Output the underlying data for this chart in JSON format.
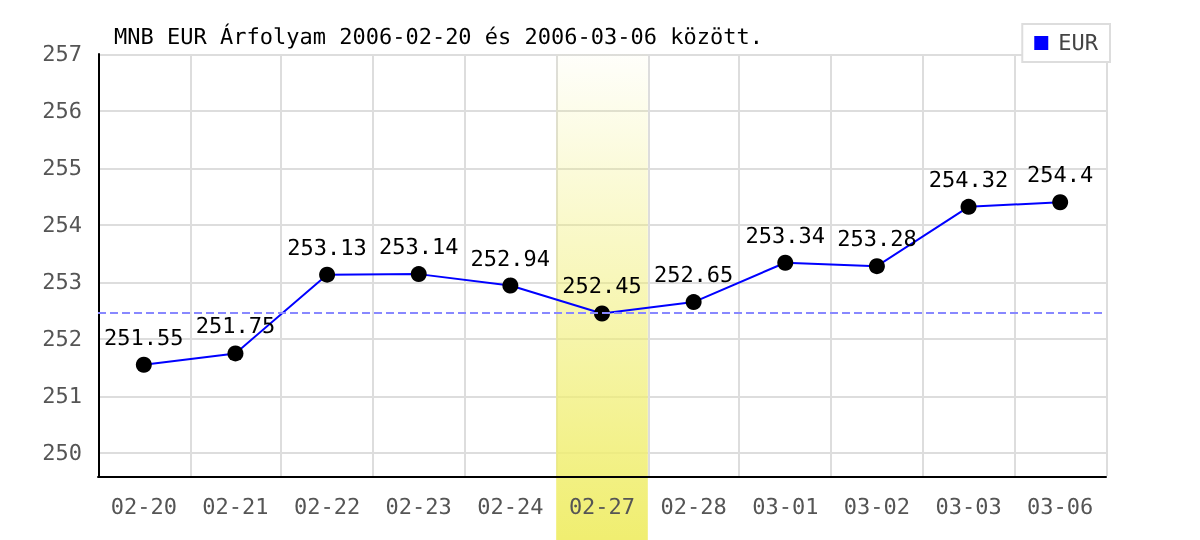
{
  "chart_data": {
    "type": "line",
    "title": "MNB EUR Árfolyam 2006-02-20 és 2006-03-06 között.",
    "categories": [
      "02-20",
      "02-21",
      "02-22",
      "02-23",
      "02-24",
      "02-27",
      "02-28",
      "03-01",
      "03-02",
      "03-03",
      "03-06"
    ],
    "series": [
      {
        "name": "EUR",
        "color": "#0000ff",
        "values": [
          251.55,
          251.75,
          253.13,
          253.14,
          252.94,
          252.45,
          252.65,
          253.34,
          253.28,
          254.32,
          254.4
        ]
      }
    ],
    "ylim": [
      249.6,
      257
    ],
    "yticks": [
      250,
      251,
      252,
      253,
      254,
      255,
      256,
      257
    ],
    "grid": true,
    "legend": "top right",
    "marker": "circle",
    "line_style": "solid",
    "data_labels": true,
    "ref_lines": [
      {
        "axis": "y",
        "value": 252.45,
        "label": null,
        "color": "#8888ff",
        "line_style": "dashed"
      }
    ],
    "bands": [
      {
        "axis": "x",
        "from": "02-27",
        "to": "02-27",
        "label": null,
        "color": "#f0ee70"
      }
    ]
  }
}
